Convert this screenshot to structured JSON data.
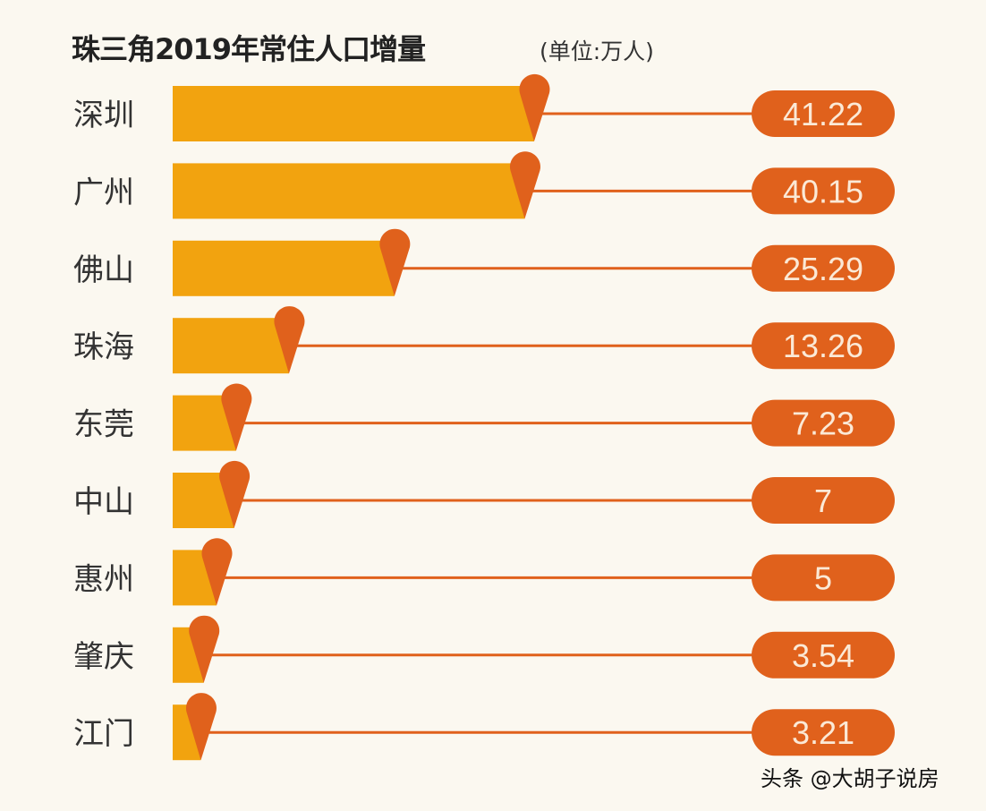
{
  "chart_data": {
    "type": "bar",
    "orientation": "horizontal",
    "title": "珠三角2019年常住人口增量",
    "unit_label": "(单位:万人)",
    "categories": [
      "深圳",
      "广州",
      "佛山",
      "珠海",
      "东莞",
      "中山",
      "惠州",
      "肇庆",
      "江门"
    ],
    "values": [
      41.22,
      40.15,
      25.29,
      13.26,
      7.23,
      7,
      5,
      3.54,
      3.21
    ],
    "value_labels": [
      "41.22",
      "40.15",
      "25.29",
      "13.26",
      "7.23",
      "7",
      "5",
      "3.54",
      "3.21"
    ],
    "xlabel": "",
    "ylabel": "",
    "grid": false,
    "colors": {
      "bar": "#f2a30f",
      "marker": "#e0611c",
      "label_bg": "#e0611c",
      "line": "#e0611c"
    }
  },
  "watermark": "头条 @大胡子说房"
}
